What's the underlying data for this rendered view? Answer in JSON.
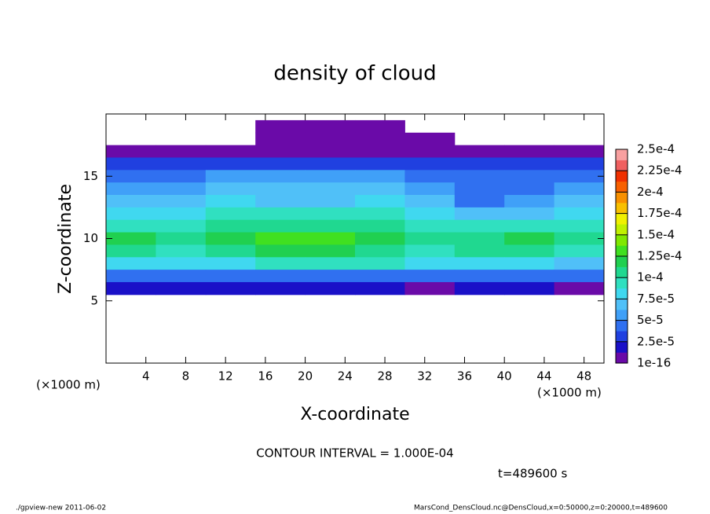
{
  "chart_data": {
    "type": "contour",
    "title": "density of cloud",
    "x_label": "X-coordinate",
    "y_label": "Z-coordinate",
    "x_unit": "(×1000 m)",
    "y_unit": "(×1000 m)",
    "xlim": [
      0,
      50
    ],
    "ylim": [
      0,
      20
    ],
    "xticks": [
      4,
      8,
      12,
      16,
      20,
      24,
      28,
      32,
      36,
      40,
      44,
      48
    ],
    "yticks": [
      5,
      10,
      15
    ],
    "x": [
      2.5,
      7.5,
      12.5,
      17.5,
      22.5,
      27.5,
      32.5,
      37.5,
      42.5,
      47.5
    ],
    "z": [
      19,
      18,
      17,
      16,
      15,
      14,
      13,
      12,
      11,
      10,
      9,
      8,
      7,
      6
    ],
    "values": [
      [
        0,
        0,
        0,
        1e-05,
        1e-05,
        1e-05,
        0,
        0,
        0,
        0
      ],
      [
        0,
        0,
        0,
        1e-05,
        1e-05,
        1e-05,
        1e-05,
        0,
        0,
        0
      ],
      [
        1e-05,
        1e-05,
        1e-05,
        1e-05,
        1e-05,
        1e-05,
        1e-05,
        1e-05,
        1e-05,
        1e-05
      ],
      [
        3e-05,
        3e-05,
        3e-05,
        3e-05,
        3e-05,
        3e-05,
        3e-05,
        3e-05,
        3e-05,
        3e-05
      ],
      [
        5e-05,
        5e-05,
        6e-05,
        6e-05,
        6e-05,
        6e-05,
        5e-05,
        4e-05,
        4e-05,
        5e-05
      ],
      [
        6e-05,
        6e-05,
        7e-05,
        7e-05,
        7e-05,
        7e-05,
        6e-05,
        4e-05,
        5e-05,
        6e-05
      ],
      [
        7e-05,
        7e-05,
        8e-05,
        7e-05,
        7e-05,
        8e-05,
        7e-05,
        5e-05,
        6e-05,
        7e-05
      ],
      [
        8e-05,
        8e-05,
        9e-05,
        9e-05,
        9e-05,
        9e-05,
        8e-05,
        7e-05,
        7e-05,
        8e-05
      ],
      [
        0.0001,
        0.0001,
        0.00011,
        0.00011,
        0.00011,
        0.00011,
        0.0001,
        9e-05,
        9e-05,
        0.0001
      ],
      [
        0.00012,
        0.00011,
        0.00012,
        0.00013,
        0.00013,
        0.00012,
        0.00011,
        0.00011,
        0.00012,
        0.00011
      ],
      [
        0.00011,
        0.0001,
        0.00011,
        0.00012,
        0.00012,
        0.00011,
        0.0001,
        0.00011,
        0.00011,
        0.0001
      ],
      [
        8e-05,
        8e-05,
        8e-05,
        9e-05,
        9e-05,
        9e-05,
        8e-05,
        8e-05,
        8e-05,
        7e-05
      ],
      [
        5e-05,
        5e-05,
        5e-05,
        5e-05,
        5e-05,
        5e-05,
        5e-05,
        5e-05,
        5e-05,
        5e-05
      ],
      [
        2e-05,
        2e-05,
        2e-05,
        2e-05,
        2e-05,
        2e-05,
        1e-05,
        2e-05,
        2e-05,
        1e-05
      ]
    ],
    "colorbar_ticks": [
      {
        "value": 1e-16,
        "label": "1e-16"
      },
      {
        "value": 2.5e-05,
        "label": "2.5e-5"
      },
      {
        "value": 5e-05,
        "label": "5e-5"
      },
      {
        "value": 7.5e-05,
        "label": "7.5e-5"
      },
      {
        "value": 0.0001,
        "label": "1e-4"
      },
      {
        "value": 0.000125,
        "label": "1.25e-4"
      },
      {
        "value": 0.00015,
        "label": "1.5e-4"
      },
      {
        "value": 0.000175,
        "label": "1.75e-4"
      },
      {
        "value": 0.0002,
        "label": "2e-4"
      },
      {
        "value": 0.000225,
        "label": "2.25e-4"
      },
      {
        "value": 0.00025,
        "label": "2.5e-4"
      }
    ],
    "colors": [
      "#6a0aa8",
      "#1a10c8",
      "#2040e0",
      "#3070f0",
      "#40a0f8",
      "#50c0f8",
      "#40d8f0",
      "#30e0c0",
      "#20d890",
      "#20d050",
      "#40e020",
      "#80e800",
      "#c0f000",
      "#f0f000",
      "#f8c000",
      "#f89000",
      "#f86000",
      "#f03000",
      "#f06060",
      "#f8a0a0"
    ],
    "contour_note": "CONTOUR INTERVAL = 1.000E-04",
    "time_note": "t=489600 s",
    "footer_left": "./gpview-new   2011-06-02",
    "footer_right": "MarsCond_DensCloud.nc@DensCloud,x=0:50000,z=0:20000,t=489600"
  }
}
